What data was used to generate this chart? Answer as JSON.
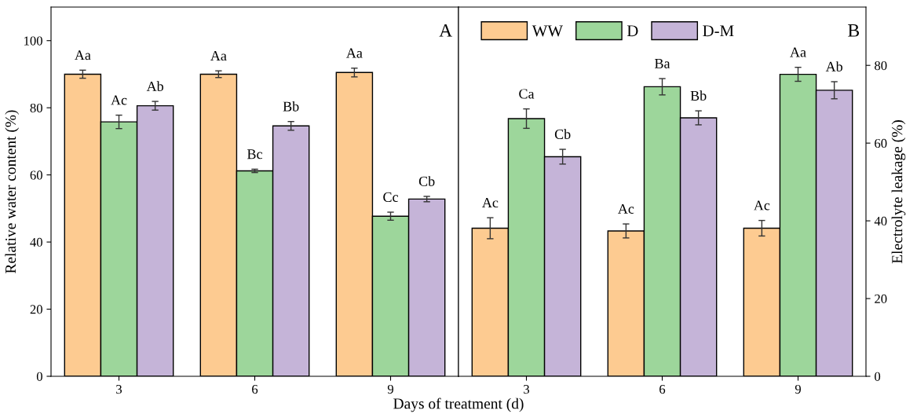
{
  "chart_data": [
    {
      "type": "bar",
      "xlabel": "Days of treatment (d)",
      "ylabel": "Relative water content (%)",
      "categories": [
        "3",
        "6",
        "9"
      ],
      "ylim": [
        0,
        110
      ],
      "yticks": [
        0,
        20,
        40,
        60,
        80,
        100
      ],
      "grid": false,
      "legend": false,
      "annotations": [
        "A"
      ],
      "series": [
        {
          "color": "#fdcb91",
          "values": [
            90.0,
            90.0,
            90.5
          ],
          "errors": [
            1.2,
            1.0,
            1.3
          ],
          "value_labels": [
            "Aa",
            "Aa",
            "Aa"
          ]
        },
        {
          "color": "#9dd69b",
          "values": [
            75.8,
            61.2,
            47.7
          ],
          "errors": [
            2.0,
            0.5,
            1.2
          ],
          "value_labels": [
            "Ac",
            "Bc",
            "Cc"
          ]
        },
        {
          "color": "#c5b4d8",
          "values": [
            80.6,
            74.6,
            52.8
          ],
          "errors": [
            1.3,
            1.3,
            0.8
          ],
          "value_labels": [
            "Ab",
            "Bb",
            "Cb"
          ]
        }
      ]
    },
    {
      "type": "bar",
      "y2label": "Electrolyte leakage (%)",
      "categories": [
        "3",
        "6",
        "9"
      ],
      "y2lim": [
        0,
        95
      ],
      "y2ticks": [
        0,
        20,
        40,
        60,
        80
      ],
      "grid": false,
      "legend": "top left",
      "annotations": [
        "B"
      ],
      "series": [
        {
          "name": "WW",
          "axis": "y2",
          "color": "#fdcb91",
          "values": [
            38.1,
            37.4,
            38.1
          ],
          "errors": [
            2.7,
            1.8,
            2.0
          ],
          "value_labels": [
            "Ac",
            "Ac",
            "Ac"
          ]
        },
        {
          "name": "D",
          "axis": "y2",
          "color": "#9dd69b",
          "values": [
            66.3,
            74.5,
            77.7
          ],
          "errors": [
            2.5,
            2.1,
            1.8
          ],
          "value_labels": [
            "Ca",
            "Ba",
            "Aa"
          ]
        },
        {
          "name": "D-M",
          "axis": "y2",
          "color": "#c5b4d8",
          "values": [
            56.5,
            66.5,
            73.6
          ],
          "errors": [
            1.9,
            1.8,
            2.2
          ],
          "value_labels": [
            "Cb",
            "Bb",
            "Ab"
          ]
        }
      ]
    }
  ]
}
